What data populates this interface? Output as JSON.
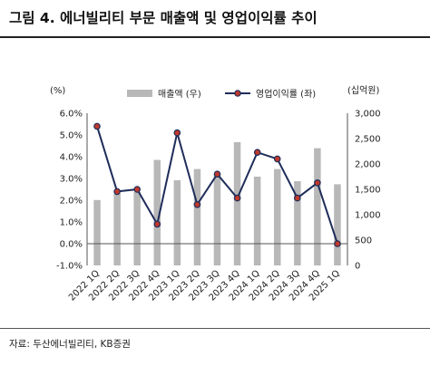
{
  "title": "그림 4. 에너빌리티 부문 매출액 및 영업이익률 추이",
  "source": "자료: 두산에너빌리티, KB증권",
  "chart_data": {
    "type": "bar+line",
    "categories": [
      "2022 1Q",
      "2022 2Q",
      "2022 3Q",
      "2022 4Q",
      "2023 1Q",
      "2023 2Q",
      "2023 3Q",
      "2023 4Q",
      "2024 1Q",
      "2024 2Q",
      "2024 3Q",
      "2024 4Q",
      "2025 1Q"
    ],
    "left_axis": {
      "unit_label": "(%)",
      "ticks": [
        "6.0%",
        "5.0%",
        "4.0%",
        "3.0%",
        "2.0%",
        "1.0%",
        "0.0%",
        "-1.0%"
      ],
      "range": [
        -1.0,
        6.0
      ]
    },
    "right_axis": {
      "unit_label": "(십억원)",
      "ticks": [
        "3,000",
        "2,500",
        "2,000",
        "1,500",
        "1,000",
        "500",
        "0"
      ],
      "range": [
        0,
        3000
      ]
    },
    "series": [
      {
        "name": "매출액 (우)",
        "type": "bar",
        "axis": "right",
        "color": "#b8b8b8",
        "values": [
          1290,
          1420,
          1450,
          2080,
          1680,
          1900,
          1790,
          2430,
          1750,
          1900,
          1660,
          2310,
          1600
        ]
      },
      {
        "name": "영업이익률 (좌)",
        "type": "line",
        "axis": "left",
        "color": "#1f2d5a",
        "marker_color": "#c0392b",
        "values": [
          5.4,
          2.4,
          2.5,
          0.9,
          5.1,
          1.8,
          3.2,
          2.1,
          4.2,
          3.9,
          2.1,
          2.8,
          0.0
        ]
      }
    ],
    "legend_position": "top-center",
    "grid": false
  }
}
